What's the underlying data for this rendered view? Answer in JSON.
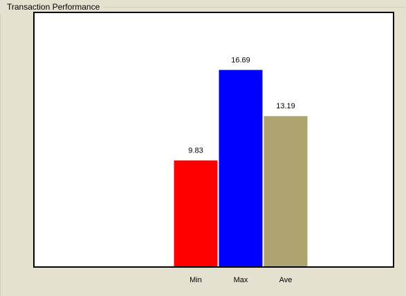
{
  "chart_data": {
    "type": "bar",
    "title": "Transaction Performance",
    "categories": [
      "Min",
      "Max",
      "Ave"
    ],
    "values": [
      9.83,
      16.69,
      13.19
    ],
    "colors": [
      "#ff0000",
      "#0000ff",
      "#aea46f"
    ],
    "ylim": [
      1.8,
      21
    ]
  }
}
